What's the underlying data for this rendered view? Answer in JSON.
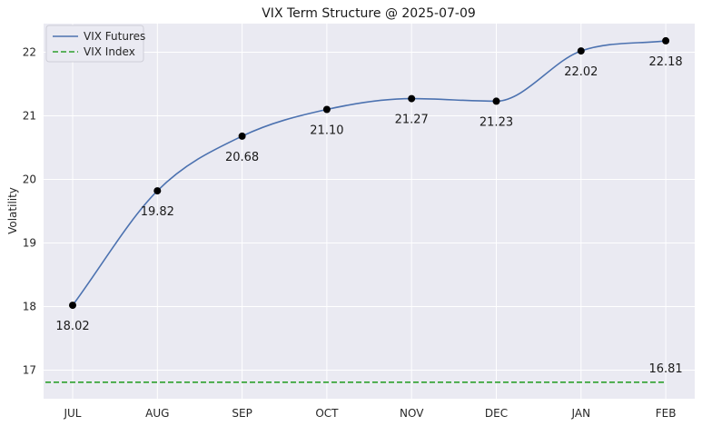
{
  "chart_data": {
    "type": "line",
    "title": "VIX Term Structure @ 2025-07-09",
    "xlabel": "",
    "ylabel": "Volatility",
    "categories": [
      "JUL",
      "AUG",
      "SEP",
      "OCT",
      "NOV",
      "DEC",
      "JAN",
      "FEB"
    ],
    "series": [
      {
        "name": "VIX Futures",
        "values": [
          18.02,
          19.82,
          20.68,
          21.1,
          21.27,
          21.23,
          22.02,
          22.18
        ],
        "labels": [
          "18.02",
          "19.82",
          "20.68",
          "21.10",
          "21.27",
          "21.23",
          "22.02",
          "22.18"
        ],
        "color": "#4c72b0",
        "style": "solid-smooth-with-markers"
      },
      {
        "name": "VIX Index",
        "value": 16.81,
        "label": "16.81",
        "color": "#2ca02c",
        "style": "dashed"
      }
    ],
    "ylim": [
      16.55,
      22.45
    ],
    "yticks": [
      17,
      18,
      19,
      20,
      21,
      22
    ],
    "ytick_labels": [
      "17",
      "18",
      "19",
      "20",
      "21",
      "22"
    ],
    "grid": true,
    "legend": "top-left",
    "background": "#eaeaf2",
    "marker_color": "#000000"
  }
}
